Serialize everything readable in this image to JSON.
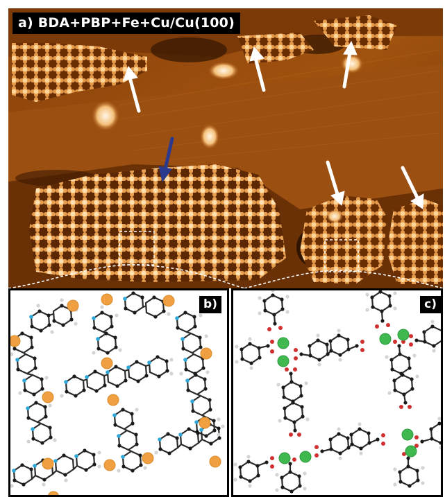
{
  "panels": {
    "a": {
      "label": "a) BDA+PBP+Fe+Cu/Cu(100)"
    },
    "b": {
      "label": "b)"
    },
    "c": {
      "label": "c)"
    }
  },
  "colors": {
    "stm_dark": "#5e2a04",
    "stm_mid": "#a9560f",
    "stm_bright": "#f4b366",
    "stm_peak": "#fff2d9",
    "arrow_white": "#ffffff",
    "arrow_blue": "#2b3a8c",
    "atom_carbon": "#1a1a1a",
    "atom_hydrogen": "#d9d9d9",
    "atom_nitrogen": "#2fa7d8",
    "atom_oxygen": "#d03030",
    "metal_b": "#f0a040",
    "metal_c": "#40b850"
  },
  "icons": {
    "arrows": "arrow-icon",
    "orange_atoms": "fe-atom-icon",
    "green_atoms": "cu-atom-icon"
  }
}
